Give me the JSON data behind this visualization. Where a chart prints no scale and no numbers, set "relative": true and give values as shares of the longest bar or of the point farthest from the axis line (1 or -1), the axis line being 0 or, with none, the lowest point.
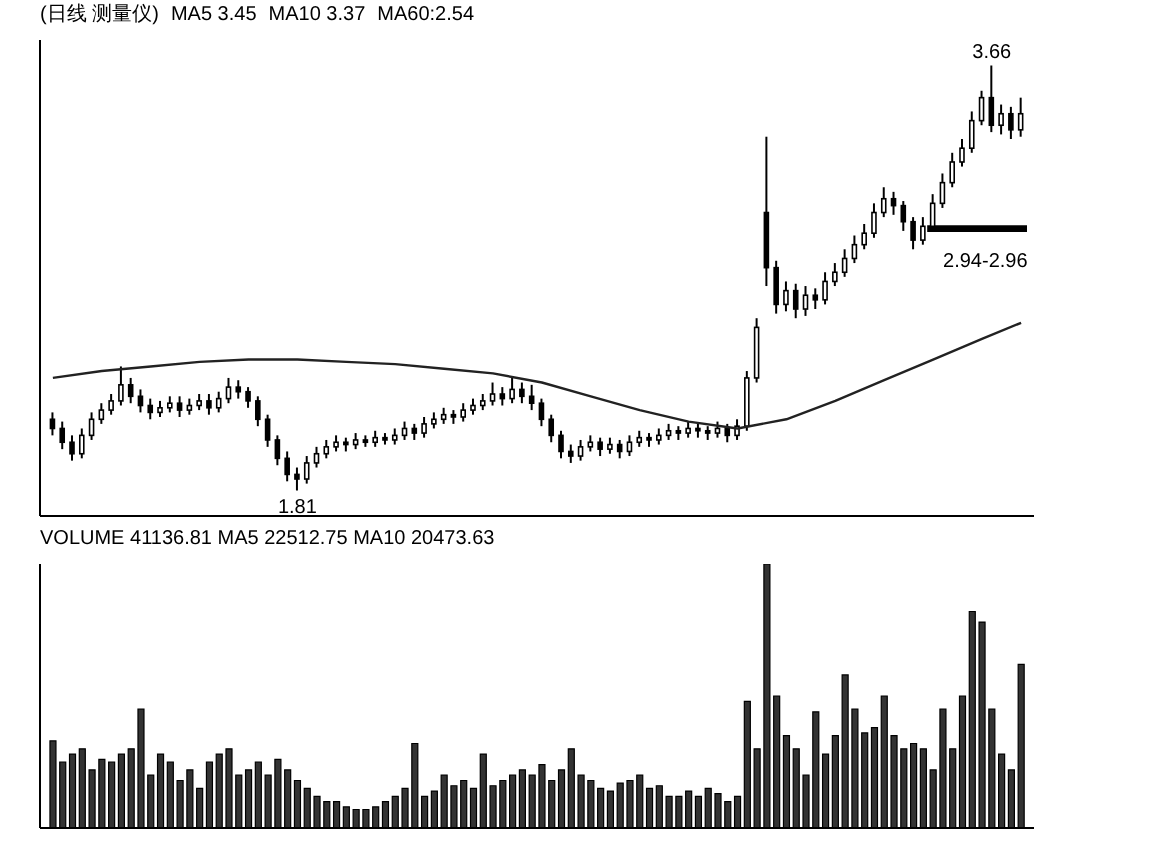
{
  "chart_data": [
    {
      "type": "candlestick",
      "title": "(日线 测量仪)",
      "color": "#000000",
      "annotations": [
        "MA5 3.45",
        "MA10 3.37",
        "MA60:2.54",
        {
          "text": "3.66",
          "y": 3.66
        },
        {
          "text": "1.81",
          "y": 1.81
        }
      ],
      "bands": [
        {
          "axis": "y",
          "from": 2.94,
          "to": 2.96,
          "label": "2.94-2.96",
          "color": "#000000"
        }
      ],
      "categories": [
        null,
        null,
        null,
        null,
        null,
        null,
        null,
        null,
        null,
        null,
        null,
        null,
        null,
        null,
        null,
        null,
        null,
        null,
        null,
        null,
        null,
        null,
        null,
        null,
        null,
        null,
        null,
        null,
        null,
        null,
        null,
        null,
        null,
        null,
        null,
        null,
        null,
        null,
        null,
        null,
        null,
        null,
        null,
        null,
        null,
        null,
        null,
        null,
        null,
        null,
        null,
        null,
        null,
        null,
        null,
        null,
        null,
        null,
        null,
        null,
        null,
        null,
        null,
        null,
        null,
        null,
        null,
        null,
        null,
        null,
        null,
        null,
        null,
        null,
        null,
        null,
        null,
        null,
        null,
        null,
        null,
        null,
        null,
        null,
        null,
        null,
        null,
        null,
        null,
        null,
        null,
        null,
        null,
        null,
        null,
        null,
        null,
        null,
        null,
        null
      ],
      "ohlc": [
        [
          2.12,
          2.15,
          2.05,
          2.08
        ],
        [
          2.08,
          2.11,
          1.99,
          2.02
        ],
        [
          2.02,
          2.05,
          1.94,
          1.97
        ],
        [
          1.97,
          2.08,
          1.95,
          2.05
        ],
        [
          2.05,
          2.15,
          2.03,
          2.12
        ],
        [
          2.12,
          2.19,
          2.1,
          2.16
        ],
        [
          2.16,
          2.23,
          2.14,
          2.2
        ],
        [
          2.2,
          2.35,
          2.18,
          2.27
        ],
        [
          2.27,
          2.3,
          2.19,
          2.22
        ],
        [
          2.22,
          2.25,
          2.15,
          2.18
        ],
        [
          2.18,
          2.21,
          2.12,
          2.15
        ],
        [
          2.15,
          2.2,
          2.13,
          2.17
        ],
        [
          2.17,
          2.22,
          2.15,
          2.19
        ],
        [
          2.19,
          2.22,
          2.13,
          2.16
        ],
        [
          2.16,
          2.21,
          2.14,
          2.18
        ],
        [
          2.18,
          2.23,
          2.16,
          2.2
        ],
        [
          2.2,
          2.23,
          2.14,
          2.17
        ],
        [
          2.17,
          2.24,
          2.15,
          2.21
        ],
        [
          2.21,
          2.3,
          2.19,
          2.26
        ],
        [
          2.26,
          2.29,
          2.21,
          2.24
        ],
        [
          2.24,
          2.26,
          2.17,
          2.2
        ],
        [
          2.2,
          2.22,
          2.09,
          2.12
        ],
        [
          2.12,
          2.14,
          2.0,
          2.03
        ],
        [
          2.03,
          2.05,
          1.92,
          1.95
        ],
        [
          1.95,
          1.98,
          1.85,
          1.88
        ],
        [
          1.88,
          1.91,
          1.81,
          1.86
        ],
        [
          1.86,
          1.96,
          1.84,
          1.93
        ],
        [
          1.93,
          2.0,
          1.91,
          1.97
        ],
        [
          1.97,
          2.03,
          1.95,
          2.0
        ],
        [
          2.0,
          2.05,
          1.98,
          2.02
        ],
        [
          2.02,
          2.04,
          1.98,
          2.01
        ],
        [
          2.01,
          2.06,
          1.99,
          2.03
        ],
        [
          2.03,
          2.05,
          2.0,
          2.02
        ],
        [
          2.02,
          2.07,
          2.0,
          2.04
        ],
        [
          2.04,
          2.06,
          2.01,
          2.03
        ],
        [
          2.03,
          2.08,
          2.01,
          2.05
        ],
        [
          2.05,
          2.11,
          2.03,
          2.08
        ],
        [
          2.08,
          2.1,
          2.03,
          2.06
        ],
        [
          2.06,
          2.13,
          2.04,
          2.1
        ],
        [
          2.1,
          2.15,
          2.08,
          2.12
        ],
        [
          2.12,
          2.17,
          2.1,
          2.14
        ],
        [
          2.14,
          2.16,
          2.1,
          2.13
        ],
        [
          2.13,
          2.19,
          2.11,
          2.16
        ],
        [
          2.16,
          2.21,
          2.14,
          2.18
        ],
        [
          2.18,
          2.23,
          2.16,
          2.2
        ],
        [
          2.2,
          2.28,
          2.18,
          2.23
        ],
        [
          2.23,
          2.26,
          2.18,
          2.21
        ],
        [
          2.21,
          2.3,
          2.19,
          2.25
        ],
        [
          2.25,
          2.28,
          2.19,
          2.22
        ],
        [
          2.22,
          2.27,
          2.16,
          2.19
        ],
        [
          2.19,
          2.21,
          2.09,
          2.12
        ],
        [
          2.12,
          2.14,
          2.02,
          2.05
        ],
        [
          2.05,
          2.07,
          1.95,
          1.98
        ],
        [
          1.98,
          2.01,
          1.93,
          1.96
        ],
        [
          1.96,
          2.03,
          1.94,
          2.0
        ],
        [
          2.0,
          2.05,
          1.98,
          2.02
        ],
        [
          2.02,
          2.04,
          1.96,
          1.99
        ],
        [
          1.99,
          2.04,
          1.97,
          2.01
        ],
        [
          2.01,
          2.03,
          1.95,
          1.98
        ],
        [
          1.98,
          2.05,
          1.96,
          2.02
        ],
        [
          2.02,
          2.07,
          2.0,
          2.04
        ],
        [
          2.04,
          2.06,
          2.0,
          2.03
        ],
        [
          2.03,
          2.08,
          2.01,
          2.05
        ],
        [
          2.05,
          2.1,
          2.03,
          2.07
        ],
        [
          2.07,
          2.09,
          2.03,
          2.06
        ],
        [
          2.06,
          2.11,
          2.04,
          2.08
        ],
        [
          2.08,
          2.1,
          2.04,
          2.07
        ],
        [
          2.07,
          2.09,
          2.03,
          2.06
        ],
        [
          2.06,
          2.11,
          2.04,
          2.08
        ],
        [
          2.08,
          2.1,
          2.02,
          2.05
        ],
        [
          2.05,
          2.12,
          2.03,
          2.09
        ],
        [
          2.09,
          2.33,
          2.07,
          2.3
        ],
        [
          2.3,
          2.56,
          2.28,
          2.52
        ],
        [
          3.02,
          3.35,
          2.7,
          2.78
        ],
        [
          2.78,
          2.81,
          2.58,
          2.62
        ],
        [
          2.62,
          2.72,
          2.59,
          2.68
        ],
        [
          2.68,
          2.71,
          2.56,
          2.6
        ],
        [
          2.6,
          2.7,
          2.57,
          2.66
        ],
        [
          2.66,
          2.69,
          2.6,
          2.64
        ],
        [
          2.64,
          2.76,
          2.62,
          2.72
        ],
        [
          2.72,
          2.8,
          2.7,
          2.76
        ],
        [
          2.76,
          2.86,
          2.74,
          2.82
        ],
        [
          2.82,
          2.92,
          2.8,
          2.88
        ],
        [
          2.88,
          2.97,
          2.86,
          2.93
        ],
        [
          2.93,
          3.06,
          2.91,
          3.02
        ],
        [
          3.02,
          3.13,
          3.0,
          3.08
        ],
        [
          3.08,
          3.11,
          3.01,
          3.05
        ],
        [
          3.05,
          3.07,
          2.94,
          2.98
        ],
        [
          2.98,
          3.0,
          2.86,
          2.9
        ],
        [
          2.9,
          3.0,
          2.88,
          2.96
        ],
        [
          2.96,
          3.1,
          2.94,
          3.06
        ],
        [
          3.06,
          3.19,
          3.04,
          3.15
        ],
        [
          3.15,
          3.28,
          3.13,
          3.24
        ],
        [
          3.24,
          3.34,
          3.22,
          3.3
        ],
        [
          3.3,
          3.46,
          3.28,
          3.42
        ],
        [
          3.42,
          3.55,
          3.4,
          3.52
        ],
        [
          3.52,
          3.66,
          3.37,
          3.4
        ],
        [
          3.4,
          3.49,
          3.36,
          3.45
        ],
        [
          3.45,
          3.48,
          3.34,
          3.38
        ],
        [
          3.38,
          3.52,
          3.35,
          3.45
        ]
      ],
      "series": [
        {
          "type": "line",
          "color": "#222222",
          "values": [
            2.3,
            null,
            null,
            null,
            null,
            2.33,
            null,
            null,
            null,
            null,
            2.35,
            null,
            null,
            null,
            null,
            2.37,
            null,
            null,
            null,
            null,
            2.38,
            null,
            null,
            null,
            null,
            2.38,
            null,
            null,
            null,
            null,
            2.37,
            null,
            null,
            null,
            null,
            2.36,
            null,
            null,
            null,
            null,
            2.34,
            null,
            null,
            null,
            null,
            2.32,
            null,
            null,
            null,
            null,
            2.28,
            null,
            null,
            null,
            null,
            2.22,
            null,
            null,
            null,
            null,
            2.16,
            null,
            null,
            null,
            null,
            2.11,
            null,
            null,
            null,
            null,
            2.08,
            null,
            null,
            null,
            null,
            2.12,
            null,
            null,
            null,
            null,
            2.2,
            null,
            null,
            null,
            null,
            2.29,
            null,
            null,
            null,
            null,
            2.38,
            null,
            null,
            null,
            null,
            2.47,
            null,
            null,
            null,
            2.54
          ]
        }
      ]
    },
    {
      "type": "bar",
      "title": "VOLUME 41136.81 MA5 22512.75 MA10 20473.63",
      "relative": true,
      "color": "#333333",
      "categories": [
        null,
        null,
        null,
        null,
        null,
        null,
        null,
        null,
        null,
        null,
        null,
        null,
        null,
        null,
        null,
        null,
        null,
        null,
        null,
        null,
        null,
        null,
        null,
        null,
        null,
        null,
        null,
        null,
        null,
        null,
        null,
        null,
        null,
        null,
        null,
        null,
        null,
        null,
        null,
        null,
        null,
        null,
        null,
        null,
        null,
        null,
        null,
        null,
        null,
        null,
        null,
        null,
        null,
        null,
        null,
        null,
        null,
        null,
        null,
        null,
        null,
        null,
        null,
        null,
        null,
        null,
        null,
        null,
        null,
        null,
        null,
        null,
        null,
        null,
        null,
        null,
        null,
        null,
        null,
        null,
        null,
        null,
        null,
        null,
        null,
        null,
        null,
        null,
        null,
        null,
        null,
        null,
        null,
        null,
        null,
        null,
        null,
        null,
        null,
        null
      ],
      "values": [
        0.33,
        0.25,
        0.28,
        0.3,
        0.22,
        0.26,
        0.25,
        0.28,
        0.3,
        0.45,
        0.2,
        0.28,
        0.25,
        0.18,
        0.22,
        0.15,
        0.25,
        0.28,
        0.3,
        0.2,
        0.22,
        0.25,
        0.2,
        0.26,
        0.22,
        0.18,
        0.15,
        0.12,
        0.1,
        0.1,
        0.08,
        0.07,
        0.07,
        0.08,
        0.1,
        0.12,
        0.15,
        0.32,
        0.12,
        0.14,
        0.2,
        0.16,
        0.18,
        0.15,
        0.28,
        0.16,
        0.18,
        0.2,
        0.22,
        0.2,
        0.24,
        0.18,
        0.22,
        0.3,
        0.2,
        0.18,
        0.15,
        0.14,
        0.17,
        0.18,
        0.2,
        0.15,
        0.16,
        0.12,
        0.12,
        0.14,
        0.12,
        0.15,
        0.13,
        0.1,
        0.12,
        0.48,
        0.3,
        1.0,
        0.5,
        0.35,
        0.3,
        0.2,
        0.44,
        0.28,
        0.35,
        0.58,
        0.45,
        0.36,
        0.38,
        0.5,
        0.35,
        0.3,
        0.32,
        0.3,
        0.22,
        0.45,
        0.3,
        0.5,
        0.82,
        0.78,
        0.45,
        0.28,
        0.22,
        0.62
      ]
    }
  ]
}
